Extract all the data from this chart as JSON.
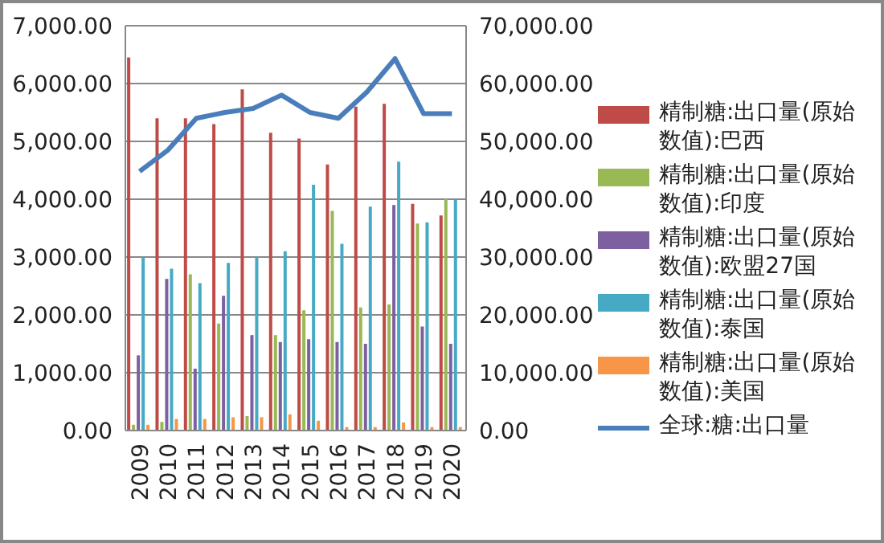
{
  "chart_data": {
    "type": "bar",
    "categories": [
      "2009",
      "2010",
      "2011",
      "2012",
      "2013",
      "2014",
      "2015",
      "2016",
      "2017",
      "2018",
      "2019",
      "2020"
    ],
    "series": [
      {
        "name": "精制糖:出口量(原始数值):巴西",
        "color": "#be4b48",
        "values": [
          6450,
          5400,
          5400,
          5300,
          5900,
          5150,
          5050,
          4600,
          5600,
          5650,
          3920,
          3720
        ]
      },
      {
        "name": "精制糖:出口量(原始数值):印度",
        "color": "#98b954",
        "values": [
          100,
          150,
          2700,
          1850,
          250,
          1650,
          2080,
          3800,
          2130,
          2180,
          3580,
          4000
        ]
      },
      {
        "name": "精制糖:出口量(原始数值):欧盟27国",
        "color": "#7d60a0",
        "values": [
          1300,
          2620,
          1070,
          2330,
          1650,
          1530,
          1580,
          1530,
          1500,
          3900,
          1800,
          1500
        ]
      },
      {
        "name": "精制糖:出口量(原始数值):泰国",
        "color": "#46aac5",
        "values": [
          3000,
          2800,
          2550,
          2900,
          3000,
          3100,
          4250,
          3230,
          3870,
          4650,
          3600,
          4000
        ]
      },
      {
        "name": "精制糖:出口量(原始数值):美国",
        "color": "#f79646",
        "values": [
          100,
          200,
          200,
          230,
          230,
          280,
          170,
          60,
          60,
          140,
          60,
          60
        ]
      },
      {
        "name": "全球:糖:出口量",
        "type": "line",
        "axis": "y2",
        "color": "#4a7ebb",
        "marker": "none",
        "values": [
          44800,
          48500,
          54000,
          55000,
          55700,
          58000,
          55000,
          54000,
          58500,
          64300,
          54800,
          54800
        ]
      }
    ],
    "ylim": [
      0,
      7000
    ],
    "yticks": [
      {
        "value": 0,
        "label": "0.00"
      },
      {
        "value": 1000,
        "label": "1,000.00"
      },
      {
        "value": 2000,
        "label": "2,000.00"
      },
      {
        "value": 3000,
        "label": "3,000.00"
      },
      {
        "value": 4000,
        "label": "4,000.00"
      },
      {
        "value": 5000,
        "label": "5,000.00"
      },
      {
        "value": 6000,
        "label": "6,000.00"
      },
      {
        "value": 7000,
        "label": "7,000.00"
      }
    ],
    "y2lim": [
      0,
      70000
    ],
    "y2ticks": [
      {
        "value": 0,
        "label": "0.00"
      },
      {
        "value": 10000,
        "label": "10,000.00"
      },
      {
        "value": 20000,
        "label": "20,000.00"
      },
      {
        "value": 30000,
        "label": "30,000.00"
      },
      {
        "value": 40000,
        "label": "40,000.00"
      },
      {
        "value": 50000,
        "label": "50,000.00"
      },
      {
        "value": 60000,
        "label": "60,000.00"
      },
      {
        "value": 70000,
        "label": "70,000.00"
      }
    ],
    "grid": "y",
    "legend": "right"
  }
}
